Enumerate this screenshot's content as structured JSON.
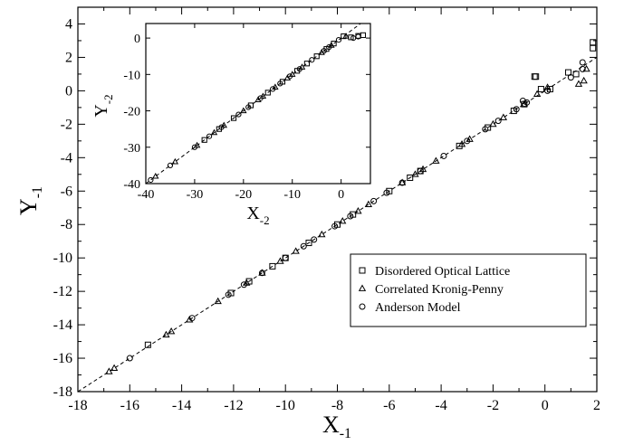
{
  "chart_data": [
    {
      "type": "scatter",
      "xlabel": "X",
      "xlabel_sub": "-1",
      "ylabel": "Y",
      "ylabel_sub": "-1",
      "xlim": [
        -18,
        2
      ],
      "ylim": [
        -18,
        5
      ],
      "xticks": [
        -18,
        -16,
        -14,
        -12,
        -10,
        -8,
        -6,
        -4,
        -2,
        0,
        2
      ],
      "yticks": [
        -18,
        -16,
        -14,
        -12,
        -10,
        -8,
        -6,
        -4,
        -2,
        0,
        2,
        4
      ],
      "grid": false,
      "legend_position": "lower-right",
      "fit_line": {
        "slope": 1,
        "intercept": 0,
        "style": "dashed"
      },
      "series": [
        {
          "name": "Disordered Optical Lattice",
          "marker": "square",
          "points": [
            [
              -15.3,
              -15.2
            ],
            [
              -12.1,
              -12.1
            ],
            [
              -11.4,
              -11.4
            ],
            [
              -10.5,
              -10.5
            ],
            [
              -10.0,
              -10.0
            ],
            [
              -9.1,
              -9.1
            ],
            [
              -8.0,
              -8.0
            ],
            [
              -7.4,
              -7.4
            ],
            [
              -6.0,
              -6.0
            ],
            [
              -5.2,
              -5.2
            ],
            [
              -4.8,
              -4.8
            ],
            [
              -3.3,
              -3.3
            ],
            [
              -2.2,
              -2.2
            ],
            [
              -1.2,
              -1.2
            ],
            [
              -0.35,
              0.85
            ],
            [
              -0.4,
              0.85
            ],
            [
              -0.15,
              0.1
            ],
            [
              0.2,
              0.1
            ],
            [
              0.9,
              1.1
            ],
            [
              1.85,
              2.55
            ],
            [
              1.85,
              2.9
            ],
            [
              1.2,
              1.0
            ],
            [
              -0.8,
              -0.8
            ]
          ]
        },
        {
          "name": "Correlated Kronig-Penny",
          "marker": "triangle",
          "points": [
            [
              -16.8,
              -16.8
            ],
            [
              -16.6,
              -16.6
            ],
            [
              -14.6,
              -14.6
            ],
            [
              -14.4,
              -14.4
            ],
            [
              -13.7,
              -13.7
            ],
            [
              -12.6,
              -12.6
            ],
            [
              -11.5,
              -11.5
            ],
            [
              -10.9,
              -10.9
            ],
            [
              -10.2,
              -10.2
            ],
            [
              -9.6,
              -9.6
            ],
            [
              -8.6,
              -8.6
            ],
            [
              -7.8,
              -7.8
            ],
            [
              -7.2,
              -7.2
            ],
            [
              -6.8,
              -6.8
            ],
            [
              -5.5,
              -5.5
            ],
            [
              -5.0,
              -5.0
            ],
            [
              -4.7,
              -4.7
            ],
            [
              -4.2,
              -4.2
            ],
            [
              -3.2,
              -3.2
            ],
            [
              -2.9,
              -2.9
            ],
            [
              -2.0,
              -2.0
            ],
            [
              -1.6,
              -1.6
            ],
            [
              -0.8,
              -0.8
            ],
            [
              -0.3,
              -0.2
            ],
            [
              0.1,
              0.2
            ],
            [
              1.3,
              0.4
            ],
            [
              1.5,
              0.6
            ],
            [
              1.6,
              1.3
            ]
          ]
        },
        {
          "name": "Anderson Model",
          "marker": "circle",
          "points": [
            [
              -16.0,
              -16.0
            ],
            [
              -13.6,
              -13.6
            ],
            [
              -12.2,
              -12.2
            ],
            [
              -11.6,
              -11.6
            ],
            [
              -10.9,
              -10.9
            ],
            [
              -10.0,
              -10.0
            ],
            [
              -9.3,
              -9.3
            ],
            [
              -8.9,
              -8.9
            ],
            [
              -8.1,
              -8.1
            ],
            [
              -7.5,
              -7.5
            ],
            [
              -6.6,
              -6.6
            ],
            [
              -6.1,
              -6.1
            ],
            [
              -5.5,
              -5.5
            ],
            [
              -4.8,
              -4.8
            ],
            [
              -3.9,
              -3.9
            ],
            [
              -3.0,
              -3.0
            ],
            [
              -2.3,
              -2.3
            ],
            [
              -1.8,
              -1.8
            ],
            [
              -1.1,
              -1.1
            ],
            [
              -0.7,
              -0.7
            ],
            [
              -0.85,
              -0.6
            ],
            [
              0.1,
              0.0
            ],
            [
              1.0,
              0.8
            ],
            [
              1.45,
              1.3
            ],
            [
              1.45,
              1.7
            ]
          ]
        }
      ]
    },
    {
      "type": "scatter",
      "inset": true,
      "xlabel": "X",
      "xlabel_sub": "-2",
      "ylabel": "Y",
      "ylabel_sub": "-2",
      "xlim": [
        -40,
        6
      ],
      "ylim": [
        -40,
        4
      ],
      "xticks": [
        -40,
        -30,
        -20,
        -10,
        0
      ],
      "yticks": [
        -40,
        -30,
        -20,
        -10,
        0
      ],
      "grid": false,
      "fit_line": {
        "slope": 1,
        "intercept": 0,
        "style": "dashed"
      },
      "series": [
        {
          "name": "Disordered Optical Lattice",
          "marker": "square",
          "points": [
            [
              -28,
              -28
            ],
            [
              -25,
              -25
            ],
            [
              -22,
              -22
            ],
            [
              -18.5,
              -18.5
            ],
            [
              -15,
              -15
            ],
            [
              -12,
              -12
            ],
            [
              -9,
              -9
            ],
            [
              -7,
              -7
            ],
            [
              -5,
              -5
            ],
            [
              -3,
              -3
            ],
            [
              -1.5,
              -1.5
            ],
            [
              0.5,
              0.5
            ],
            [
              2,
              0.2
            ],
            [
              3.5,
              0.6
            ],
            [
              4.5,
              0.8
            ]
          ]
        },
        {
          "name": "Correlated Kronig-Penny",
          "marker": "triangle",
          "points": [
            [
              -38,
              -38
            ],
            [
              -34,
              -34
            ],
            [
              -29.5,
              -29.5
            ],
            [
              -26,
              -26
            ],
            [
              -24,
              -24
            ],
            [
              -20,
              -20
            ],
            [
              -17,
              -17
            ],
            [
              -16,
              -16
            ],
            [
              -13.5,
              -13.5
            ],
            [
              -11,
              -11
            ],
            [
              -10,
              -10
            ],
            [
              -8,
              -8
            ],
            [
              -4,
              -4
            ],
            [
              -2,
              -2
            ],
            [
              1,
              0.5
            ]
          ]
        },
        {
          "name": "Anderson Model",
          "marker": "circle",
          "points": [
            [
              -39,
              -39
            ],
            [
              -35,
              -35
            ],
            [
              -30,
              -30
            ],
            [
              -27,
              -27
            ],
            [
              -24.5,
              -24.5
            ],
            [
              -21,
              -21
            ],
            [
              -19,
              -19
            ],
            [
              -16.5,
              -16.5
            ],
            [
              -14,
              -14
            ],
            [
              -12.5,
              -12.5
            ],
            [
              -10.5,
              -10.5
            ],
            [
              -8.5,
              -8.5
            ],
            [
              -6,
              -6
            ],
            [
              -3.5,
              -3.5
            ],
            [
              -2.5,
              -2.5
            ],
            [
              -0.5,
              -0.5
            ],
            [
              2.5,
              0
            ],
            [
              3.5,
              0.4
            ]
          ]
        }
      ]
    }
  ]
}
